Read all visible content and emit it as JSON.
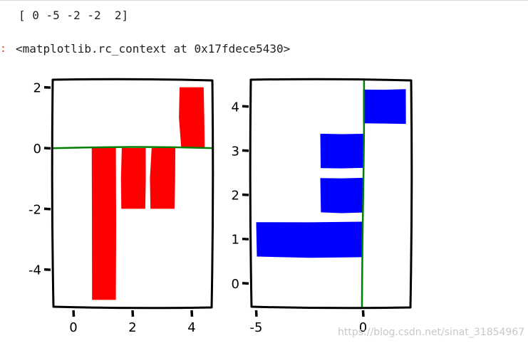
{
  "notebook": {
    "array_output": "[ 0 -5 -2 -2  2]",
    "out_prompt": ":",
    "rc_context_output": "<matplotlib.rc_context at 0x17fdece5430>"
  },
  "watermark": "https://blog.csdn.net/sinat_31854967",
  "chart_data": [
    {
      "type": "bar",
      "style": "xkcd",
      "orientation": "vertical",
      "categories": [
        0,
        1,
        2,
        3,
        4
      ],
      "values": [
        0,
        -5,
        -2,
        -2,
        2
      ],
      "bar_color": "#ff0000",
      "zero_line_color": "#008000",
      "xlim": [
        -0.7,
        4.7
      ],
      "ylim": [
        -5.25,
        2.25
      ],
      "xticks": [
        0,
        2,
        4
      ],
      "xtick_labels": [
        "0",
        "2",
        "4"
      ],
      "yticks": [
        2,
        0,
        -2,
        -4
      ],
      "ytick_labels": [
        "2",
        "0",
        "-2",
        "-4"
      ],
      "grid": false
    },
    {
      "type": "bar",
      "style": "xkcd",
      "orientation": "horizontal",
      "categories": [
        0,
        1,
        2,
        3,
        4
      ],
      "values": [
        0,
        -5,
        -2,
        -2,
        2
      ],
      "bar_color": "#0000ff",
      "zero_line_color": "#008000",
      "xlim": [
        -5.25,
        2.25
      ],
      "ylim": [
        -0.55,
        4.6
      ],
      "xticks": [
        -5,
        0
      ],
      "xtick_labels": [
        "-5",
        "0"
      ],
      "yticks": [
        4,
        3,
        2,
        1,
        0
      ],
      "ytick_labels": [
        "4",
        "3",
        "2",
        "1",
        "0"
      ],
      "grid": false
    }
  ]
}
